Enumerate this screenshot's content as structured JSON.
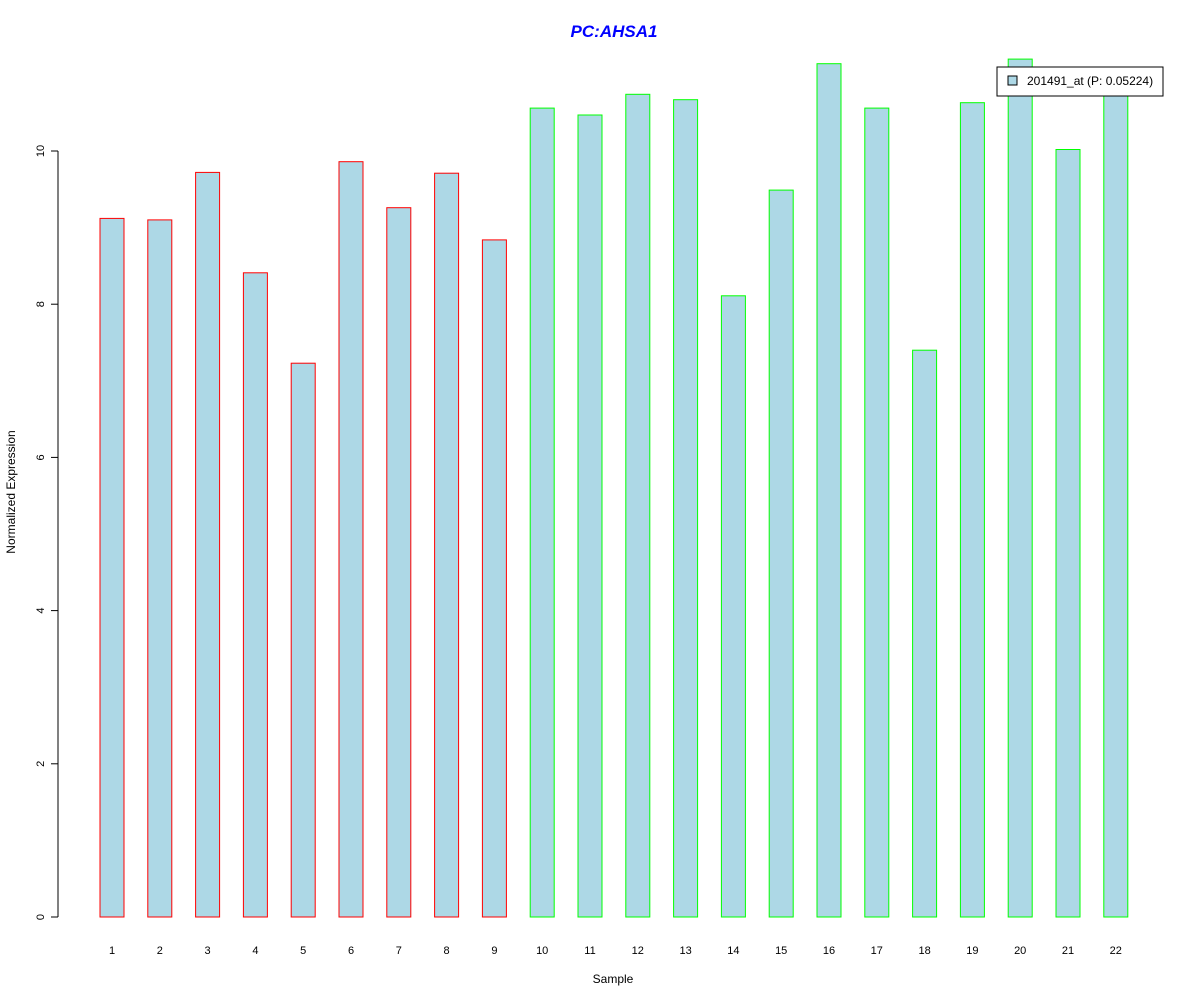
{
  "chart_data": {
    "type": "bar",
    "title": "PC:AHSA1",
    "xlabel": "Sample",
    "ylabel": "Normalized Expression",
    "categories": [
      "1",
      "2",
      "3",
      "4",
      "5",
      "6",
      "7",
      "8",
      "9",
      "10",
      "11",
      "12",
      "13",
      "14",
      "15",
      "16",
      "17",
      "18",
      "19",
      "20",
      "21",
      "22"
    ],
    "series": [
      {
        "name": "201491_at (P: 0.05224)",
        "values": [
          9.12,
          9.1,
          9.72,
          8.41,
          7.23,
          9.86,
          9.26,
          9.71,
          8.84,
          10.56,
          10.47,
          10.74,
          10.67,
          8.11,
          9.49,
          11.14,
          10.56,
          7.4,
          10.63,
          11.2,
          10.02,
          10.92
        ]
      }
    ],
    "bar_edge_colors": [
      "#ff0000",
      "#ff0000",
      "#ff0000",
      "#ff0000",
      "#ff0000",
      "#ff0000",
      "#ff0000",
      "#ff0000",
      "#ff0000",
      "#00ff00",
      "#00ff00",
      "#00ff00",
      "#00ff00",
      "#00ff00",
      "#00ff00",
      "#00ff00",
      "#00ff00",
      "#00ff00",
      "#00ff00",
      "#00ff00",
      "#00ff00",
      "#00ff00"
    ],
    "yticks": [
      "0",
      "2",
      "4",
      "6",
      "8",
      "10"
    ],
    "ylim": [
      0,
      11.2
    ],
    "grid": false,
    "legend_position": "top-right",
    "colors": {
      "bar_fill": "#add8e6",
      "title": "#0000ff",
      "axis": "#000000"
    }
  }
}
